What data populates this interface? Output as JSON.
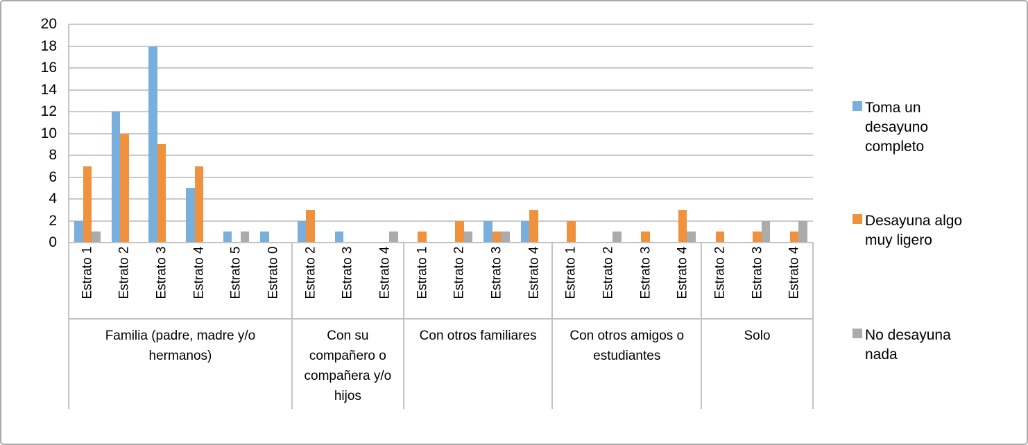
{
  "chart_data": {
    "type": "bar",
    "legend_position": "right",
    "grid": true,
    "ylim": [
      0,
      20
    ],
    "ytick_step": 2,
    "yticks": [
      0,
      2,
      4,
      6,
      8,
      10,
      12,
      14,
      16,
      18,
      20
    ],
    "series": [
      {
        "name": "Toma un desayuno completo",
        "color": "#79afdc"
      },
      {
        "name": "Desayuna algo muy ligero",
        "color": "#f0913d"
      },
      {
        "name": "No desayuna nada",
        "color": "#ababab"
      }
    ],
    "groups": [
      {
        "label": "Familia (padre, madre y/o hermanos)",
        "categories": [
          "Estrato 1",
          "Estrato 2",
          "Estrato 3",
          "Estrato 4",
          "Estrato 5",
          "Estrato 0"
        ],
        "values": [
          [
            2,
            7,
            1
          ],
          [
            12,
            10,
            0
          ],
          [
            18,
            9,
            0
          ],
          [
            5,
            7,
            0
          ],
          [
            1,
            0,
            1
          ],
          [
            1,
            0,
            0
          ]
        ]
      },
      {
        "label": "Con su compañero o compañera y/o hijos",
        "categories": [
          "Estrato 2",
          "Estrato 3",
          "Estrato 4"
        ],
        "values": [
          [
            2,
            3,
            0
          ],
          [
            1,
            0,
            0
          ],
          [
            0,
            0,
            1
          ]
        ]
      },
      {
        "label": "Con otros familiares",
        "categories": [
          "Estrato 1",
          "Estrato 2",
          "Estrato 3",
          "Estrato 4"
        ],
        "values": [
          [
            0,
            1,
            0
          ],
          [
            0,
            2,
            1
          ],
          [
            2,
            1,
            1
          ],
          [
            2,
            3,
            0
          ]
        ]
      },
      {
        "label": "Con otros amigos o estudiantes",
        "categories": [
          "Estrato 1",
          "Estrato 2",
          "Estrato 3",
          "Estrato 4"
        ],
        "values": [
          [
            0,
            2,
            0
          ],
          [
            0,
            0,
            1
          ],
          [
            0,
            1,
            0
          ],
          [
            0,
            3,
            1
          ]
        ]
      },
      {
        "label": "Solo",
        "categories": [
          "Estrato 2",
          "Estrato 3",
          "Estrato 4"
        ],
        "values": [
          [
            0,
            1,
            0
          ],
          [
            0,
            1,
            2
          ],
          [
            0,
            1,
            2
          ]
        ]
      }
    ]
  }
}
